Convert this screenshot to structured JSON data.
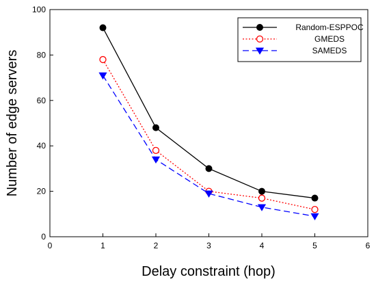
{
  "chart_data": {
    "type": "line",
    "title": "",
    "xlabel": "Delay constraint (hop)",
    "ylabel": "Number of edge servers",
    "xlim": [
      0,
      6
    ],
    "ylim": [
      0,
      100
    ],
    "xticks": [
      0,
      1,
      2,
      3,
      4,
      5,
      6
    ],
    "yticks": [
      0,
      20,
      40,
      60,
      80,
      100
    ],
    "grid": false,
    "legend_position": "top-right",
    "x": [
      1,
      2,
      3,
      4,
      5
    ],
    "series": [
      {
        "name": "Random-ESPPOC",
        "values": [
          92,
          48,
          30,
          20,
          17
        ],
        "color": "#000000",
        "line": "solid",
        "marker": "filled-circle"
      },
      {
        "name": "GMEDS",
        "values": [
          78,
          38,
          20,
          17,
          12
        ],
        "color": "#ff0000",
        "line": "dotted",
        "marker": "open-circle"
      },
      {
        "name": "SAMEDS",
        "values": [
          71,
          34,
          19,
          13,
          9
        ],
        "color": "#0000ff",
        "line": "dashed",
        "marker": "filled-triangle-down"
      }
    ]
  }
}
